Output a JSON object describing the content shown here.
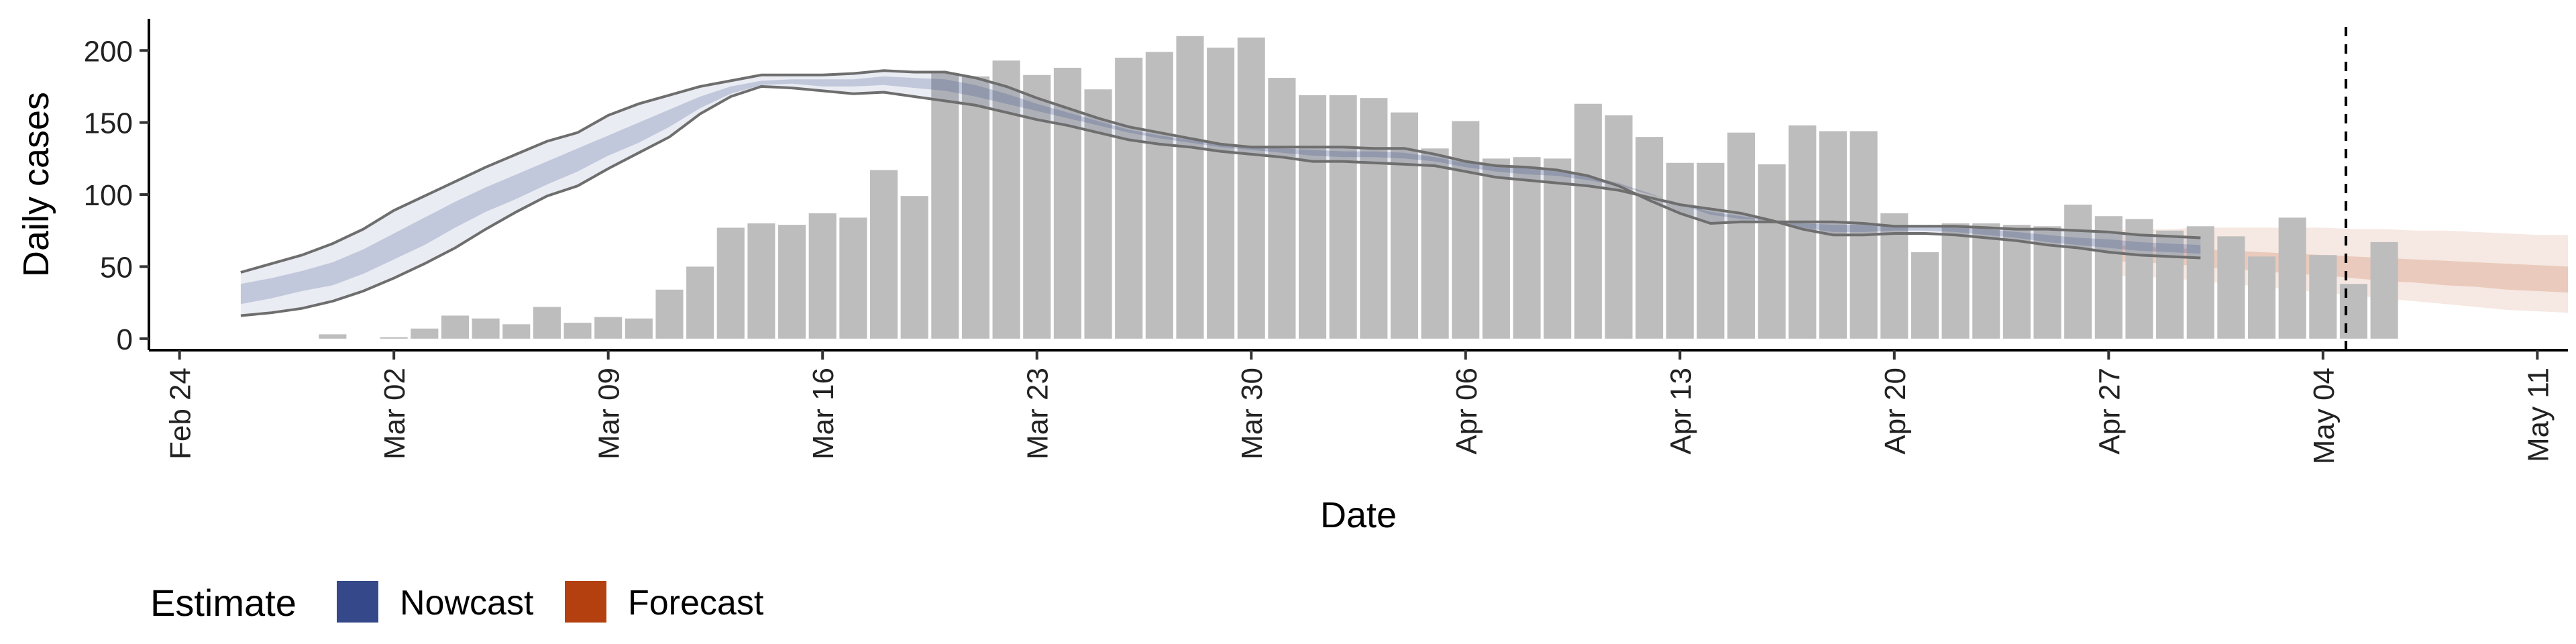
{
  "chart_data": {
    "type": "bar",
    "xlabel": "Date",
    "ylabel": "Daily cases",
    "x_range": [
      "2020-02-23",
      "2020-05-12"
    ],
    "ylim": [
      -8,
      222
    ],
    "x_ticks": [
      {
        "date": "2020-02-24",
        "label": "Feb 24"
      },
      {
        "date": "2020-03-02",
        "label": "Mar 02"
      },
      {
        "date": "2020-03-09",
        "label": "Mar 09"
      },
      {
        "date": "2020-03-16",
        "label": "Mar 16"
      },
      {
        "date": "2020-03-23",
        "label": "Mar 23"
      },
      {
        "date": "2020-03-30",
        "label": "Mar 30"
      },
      {
        "date": "2020-04-06",
        "label": "Apr 06"
      },
      {
        "date": "2020-04-13",
        "label": "Apr 13"
      },
      {
        "date": "2020-04-20",
        "label": "Apr 20"
      },
      {
        "date": "2020-04-27",
        "label": "Apr 27"
      },
      {
        "date": "2020-05-04",
        "label": "May 04"
      },
      {
        "date": "2020-05-11",
        "label": "May 11"
      }
    ],
    "y_ticks": [
      0,
      50,
      100,
      150,
      200
    ],
    "vline_date": "2020-05-04T18:00",
    "bars": {
      "start_date": "2020-02-29",
      "values": [
        3,
        0,
        1,
        7,
        16,
        14,
        10,
        22,
        11,
        15,
        14,
        34,
        50,
        77,
        80,
        79,
        87,
        84,
        117,
        99,
        184,
        182,
        193,
        183,
        188,
        173,
        195,
        199,
        210,
        202,
        209,
        181,
        169,
        169,
        167,
        157,
        132,
        151,
        125,
        126,
        125,
        163,
        155,
        140,
        122,
        122,
        143,
        121,
        148,
        144,
        144,
        87,
        60,
        80,
        80,
        79,
        78,
        93,
        85,
        83,
        75,
        78,
        71,
        57,
        84,
        58,
        38,
        67
      ]
    },
    "estimates": [
      {
        "name": "Nowcast",
        "color": "#35498A",
        "start_date": "2020-02-26",
        "lower90": [
          16,
          18,
          21,
          26,
          33,
          42,
          52,
          63,
          76,
          88,
          99,
          106,
          118,
          129,
          140,
          156,
          168,
          175,
          174,
          172,
          170,
          171,
          168,
          165,
          162,
          157,
          152,
          148,
          143,
          138,
          135,
          133,
          130,
          128,
          126,
          123,
          123,
          122,
          121,
          120,
          116,
          112,
          110,
          108,
          106,
          103,
          98,
          93,
          90,
          87,
          82,
          76,
          72,
          72,
          73,
          73,
          72,
          70,
          68,
          65,
          63,
          60,
          58,
          57,
          56
        ],
        "upper90": [
          46,
          52,
          58,
          66,
          76,
          89,
          99,
          109,
          119,
          128,
          137,
          143,
          155,
          163,
          169,
          175,
          179,
          183,
          183,
          183,
          184,
          186,
          185,
          185,
          181,
          175,
          167,
          160,
          153,
          147,
          143,
          139,
          135,
          133,
          133,
          133,
          133,
          132,
          132,
          128,
          123,
          120,
          119,
          117,
          113,
          106,
          96,
          87,
          80,
          81,
          81,
          81,
          81,
          80,
          78,
          78,
          78,
          77,
          76,
          76,
          75,
          74,
          72,
          71,
          70
        ],
        "lower50": [
          24,
          28,
          33,
          37,
          45,
          55,
          65,
          77,
          88,
          97,
          107,
          116,
          127,
          136,
          147,
          160,
          170,
          176,
          177,
          175,
          175,
          176,
          174,
          172,
          168,
          163,
          158,
          153,
          148,
          143,
          139,
          136,
          133,
          131,
          129,
          127,
          126,
          126,
          125,
          123,
          119,
          116,
          114,
          113,
          110,
          106,
          100,
          94,
          88,
          85,
          82,
          77,
          74,
          74,
          75,
          75,
          74,
          72,
          70,
          67,
          65,
          63,
          61,
          60,
          59
        ],
        "upper50": [
          38,
          42,
          47,
          53,
          62,
          73,
          84,
          95,
          105,
          114,
          123,
          132,
          141,
          150,
          159,
          168,
          175,
          179,
          180,
          180,
          180,
          182,
          181,
          180,
          176,
          170,
          163,
          157,
          151,
          145,
          141,
          138,
          135,
          133,
          132,
          131,
          130,
          130,
          129,
          126,
          122,
          119,
          118,
          116,
          113,
          108,
          101,
          93,
          86,
          83,
          82,
          80,
          79,
          79,
          78,
          78,
          77,
          76,
          74,
          72,
          70,
          69,
          67,
          66,
          65
        ]
      },
      {
        "name": "Forecast",
        "color": "#B5400F",
        "start_date": "2020-04-27",
        "lower90": [
          44,
          43,
          42,
          40,
          38,
          36,
          34,
          32,
          30,
          28,
          26,
          24,
          22,
          20,
          19,
          18
        ],
        "upper90": [
          75,
          76,
          76,
          77,
          77,
          77,
          77,
          77,
          76,
          76,
          75,
          75,
          74,
          73,
          72,
          72
        ],
        "lower50": [
          54,
          53,
          52,
          50,
          48,
          47,
          45,
          44,
          42,
          40,
          39,
          37,
          36,
          34,
          33,
          32
        ],
        "upper50": [
          65,
          64,
          63,
          62,
          61,
          60,
          59,
          58,
          57,
          56,
          55,
          54,
          53,
          52,
          51,
          50
        ]
      }
    ],
    "legend": {
      "title": "Estimate",
      "position": "bottom-left",
      "items": [
        "Nowcast",
        "Forecast"
      ]
    }
  }
}
